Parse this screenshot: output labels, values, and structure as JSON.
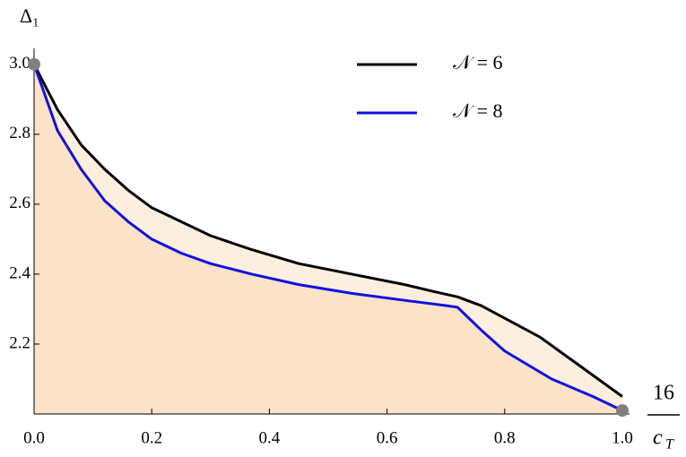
{
  "chart_data": {
    "type": "line",
    "ylabel": "Δ₁",
    "xlabel_numerator": "16",
    "xlabel_denominator": "c",
    "xlabel_denominator_subscript": "T",
    "xlim": [
      0,
      1.0
    ],
    "ylim": [
      2.0,
      3.02
    ],
    "xticks": [
      {
        "value": 0,
        "label": "0.0"
      },
      0.2,
      0.4,
      0.6,
      0.8,
      {
        "value": 1,
        "label": "1.0"
      }
    ],
    "yticks": [
      2.2,
      2.4,
      2.6,
      2.8,
      {
        "value": 3,
        "label": "3.0"
      }
    ],
    "legend": "top-right",
    "series": [
      {
        "name": "𝒩 = 6",
        "color": "#000000",
        "fill": "#fdefe0",
        "x": [
          0,
          0.04,
          0.08,
          0.12,
          0.16,
          0.2,
          0.25,
          0.3,
          0.37,
          0.45,
          0.54,
          0.63,
          0.68,
          0.72,
          0.76,
          0.86,
          1.0
        ],
        "values": [
          3.0,
          2.87,
          2.77,
          2.7,
          2.64,
          2.59,
          2.55,
          2.51,
          2.47,
          2.43,
          2.4,
          2.37,
          2.35,
          2.335,
          2.31,
          2.22,
          2.05
        ]
      },
      {
        "name": "𝒩 = 8",
        "color": "#1010e0",
        "fill": "#fce2c6",
        "x": [
          0,
          0.04,
          0.08,
          0.12,
          0.16,
          0.2,
          0.25,
          0.3,
          0.37,
          0.45,
          0.54,
          0.63,
          0.7,
          0.72,
          0.76,
          0.8,
          0.88,
          0.95,
          1.0
        ],
        "values": [
          3.0,
          2.81,
          2.7,
          2.61,
          2.55,
          2.5,
          2.46,
          2.43,
          2.4,
          2.37,
          2.345,
          2.325,
          2.31,
          2.305,
          2.24,
          2.18,
          2.1,
          2.05,
          2.01
        ]
      }
    ],
    "points": {
      "color": "#808080",
      "x": [
        0,
        1.0
      ],
      "values": [
        3.0,
        2.01
      ]
    }
  }
}
